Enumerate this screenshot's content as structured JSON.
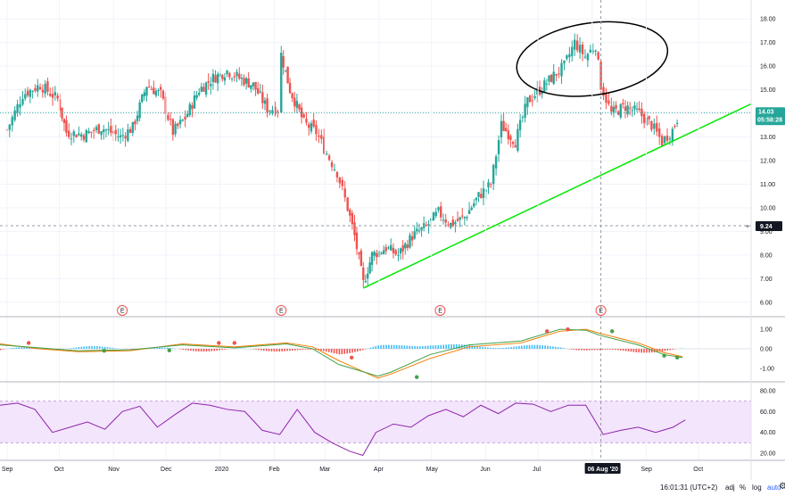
{
  "chart_data": [
    {
      "type": "candlestick",
      "pane": "price",
      "ylim": [
        5.5,
        18.5
      ],
      "y_ticks": [
        "18.00",
        "17.00",
        "16.00",
        "15.00",
        "14.00",
        "13.00",
        "12.00",
        "11.00",
        "10.00",
        "9.00",
        "8.00",
        "7.00",
        "6.00"
      ],
      "last_price_label": "14.03",
      "countdown_label": "05:58:28",
      "crosshair_price_label": "9.24",
      "last_price": 14.03,
      "crosshair_price": 9.24,
      "crosshair_date_label": "06 Aug '20",
      "earnings_marker_label": "E",
      "earnings_markers_date": [
        "2019-11-06",
        "2020-02-05",
        "2020-05-06",
        "2020-08-06"
      ],
      "x_ticks": [
        "Sep",
        "Oct",
        "Nov",
        "Dec",
        "2020",
        "Feb",
        "Mar",
        "Apr",
        "May",
        "Jun",
        "Jul",
        "Aug",
        "Sep",
        "Oct"
      ],
      "close_trace_points": [
        [
          "2019-09-01",
          13.3
        ],
        [
          "2019-09-10",
          14.8
        ],
        [
          "2019-09-20",
          15.2
        ],
        [
          "2019-09-30",
          14.6
        ],
        [
          "2019-10-05",
          13.2
        ],
        [
          "2019-10-15",
          13.1
        ],
        [
          "2019-10-25",
          13.4
        ],
        [
          "2019-11-05",
          13.0
        ],
        [
          "2019-11-12",
          13.4
        ],
        [
          "2019-11-20",
          15.2
        ],
        [
          "2019-11-28",
          14.8
        ],
        [
          "2019-12-05",
          13.2
        ],
        [
          "2019-12-12",
          13.8
        ],
        [
          "2019-12-20",
          15.0
        ],
        [
          "2019-12-28",
          15.5
        ],
        [
          "2020-01-05",
          15.8
        ],
        [
          "2020-01-12",
          15.5
        ],
        [
          "2020-01-20",
          15.2
        ],
        [
          "2020-01-28",
          14.2
        ],
        [
          "2020-02-03",
          14.2
        ],
        [
          "2020-02-05",
          16.5
        ],
        [
          "2020-02-10",
          15.0
        ],
        [
          "2020-02-18",
          13.6
        ],
        [
          "2020-02-25",
          13.2
        ],
        [
          "2020-03-02",
          12.3
        ],
        [
          "2020-03-08",
          11.5
        ],
        [
          "2020-03-14",
          10.0
        ],
        [
          "2020-03-18",
          8.8
        ],
        [
          "2020-03-23",
          6.8
        ],
        [
          "2020-03-28",
          8.0
        ],
        [
          "2020-04-05",
          8.3
        ],
        [
          "2020-04-12",
          8.0
        ],
        [
          "2020-04-20",
          8.8
        ],
        [
          "2020-04-28",
          9.2
        ],
        [
          "2020-05-05",
          9.8
        ],
        [
          "2020-05-12",
          9.3
        ],
        [
          "2020-05-20",
          9.6
        ],
        [
          "2020-05-28",
          10.5
        ],
        [
          "2020-06-04",
          11.0
        ],
        [
          "2020-06-10",
          13.5
        ],
        [
          "2020-06-18",
          12.8
        ],
        [
          "2020-06-25",
          14.5
        ],
        [
          "2020-07-02",
          15.0
        ],
        [
          "2020-07-10",
          15.6
        ],
        [
          "2020-07-16",
          16.0
        ],
        [
          "2020-07-22",
          17.0
        ],
        [
          "2020-07-28",
          16.4
        ],
        [
          "2020-08-03",
          16.9
        ],
        [
          "2020-08-06",
          15.2
        ],
        [
          "2020-08-12",
          14.0
        ],
        [
          "2020-08-20",
          14.3
        ],
        [
          "2020-08-28",
          14.0
        ],
        [
          "2020-09-04",
          13.5
        ],
        [
          "2020-09-10",
          12.8
        ],
        [
          "2020-09-16",
          13.3
        ],
        [
          "2020-09-20",
          14.0
        ]
      ],
      "trendline": {
        "color": "#00e800",
        "from": [
          "2020-03-23",
          6.6
        ],
        "to": [
          "2020-10-31",
          14.4
        ]
      },
      "annotation": {
        "shape": "circle",
        "color": "#000000",
        "center": [
          "2020-08-01",
          16.3
        ],
        "span_x_days": 30,
        "span_y_units": 2.6
      },
      "colors": {
        "up": "#26a69a",
        "down": "#ef5350",
        "last_price_bg": "#26a69a",
        "crosshair_bg": "#131722"
      }
    },
    {
      "type": "line",
      "pane": "macd",
      "ylim": [
        -1.6,
        1.6
      ],
      "y_ticks": [
        "1.00",
        "0.00",
        "-1.00"
      ],
      "series": [
        {
          "color": "#f57c00",
          "values": [
            [
              0,
              0.25
            ],
            [
              30,
              0.0
            ],
            [
              60,
              -0.15
            ],
            [
              100,
              -0.1
            ],
            [
              140,
              0.25
            ],
            [
              180,
              0.1
            ],
            [
              220,
              0.3
            ],
            [
              240,
              0.1
            ],
            [
              260,
              -0.6
            ],
            [
              290,
              -1.5
            ],
            [
              300,
              -1.3
            ],
            [
              330,
              -0.5
            ],
            [
              360,
              0.1
            ],
            [
              400,
              0.3
            ],
            [
              430,
              0.9
            ],
            [
              450,
              1.0
            ],
            [
              460,
              0.8
            ],
            [
              490,
              0.3
            ],
            [
              510,
              -0.2
            ],
            [
              524,
              -0.4
            ]
          ]
        },
        {
          "color": "#43a047",
          "values": [
            [
              0,
              0.2
            ],
            [
              30,
              0.05
            ],
            [
              60,
              -0.1
            ],
            [
              100,
              -0.05
            ],
            [
              140,
              0.2
            ],
            [
              180,
              0.05
            ],
            [
              220,
              0.25
            ],
            [
              240,
              0.0
            ],
            [
              260,
              -0.8
            ],
            [
              290,
              -1.4
            ],
            [
              300,
              -1.2
            ],
            [
              330,
              -0.3
            ],
            [
              360,
              0.2
            ],
            [
              400,
              0.4
            ],
            [
              430,
              1.0
            ],
            [
              450,
              0.95
            ],
            [
              460,
              0.7
            ],
            [
              490,
              0.2
            ],
            [
              510,
              -0.3
            ],
            [
              524,
              -0.45
            ]
          ]
        }
      ],
      "histogram_note": "blue/red bars around zero"
    },
    {
      "type": "line",
      "pane": "rsi",
      "ylim": [
        15,
        85
      ],
      "y_ticks": [
        "80.00",
        "60.00",
        "40.00",
        "20.00"
      ],
      "band": [
        30,
        70
      ],
      "color": "#8e24aa",
      "values": [
        [
          0,
          66
        ],
        [
          20,
          68
        ],
        [
          40,
          62
        ],
        [
          60,
          40
        ],
        [
          80,
          45
        ],
        [
          100,
          50
        ],
        [
          120,
          43
        ],
        [
          140,
          60
        ],
        [
          160,
          65
        ],
        [
          180,
          45
        ],
        [
          200,
          57
        ],
        [
          220,
          68
        ],
        [
          240,
          66
        ],
        [
          260,
          62
        ],
        [
          280,
          60
        ],
        [
          300,
          42
        ],
        [
          320,
          38
        ],
        [
          340,
          62
        ],
        [
          360,
          40
        ],
        [
          380,
          30
        ],
        [
          400,
          22
        ],
        [
          415,
          18
        ],
        [
          430,
          40
        ],
        [
          450,
          48
        ],
        [
          470,
          45
        ],
        [
          490,
          56
        ],
        [
          510,
          62
        ],
        [
          530,
          55
        ],
        [
          550,
          66
        ],
        [
          570,
          58
        ],
        [
          590,
          68
        ],
        [
          610,
          67
        ],
        [
          630,
          60
        ],
        [
          650,
          66
        ],
        [
          670,
          66
        ],
        [
          690,
          38
        ],
        [
          710,
          42
        ],
        [
          730,
          45
        ],
        [
          750,
          40
        ],
        [
          770,
          45
        ],
        [
          784,
          52
        ]
      ]
    }
  ],
  "status_bar": {
    "time": "16:01:31 (UTC+2)",
    "adj": "adj",
    "percent": "%",
    "log": "log",
    "auto": "auto"
  },
  "icons": {
    "settings": "gear-icon"
  }
}
